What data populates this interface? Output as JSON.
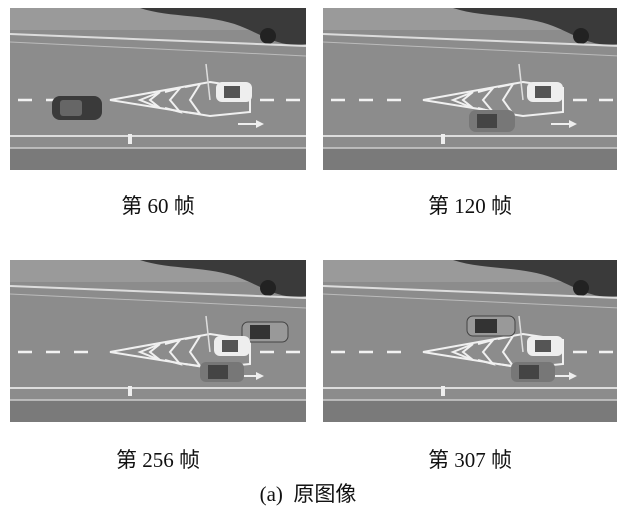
{
  "panels": [
    {
      "caption": "第 60 帧"
    },
    {
      "caption": "第 120 帧"
    },
    {
      "caption": "第 256 帧"
    },
    {
      "caption": "第 307 帧"
    }
  ],
  "figure_caption": "(a)  原图像"
}
